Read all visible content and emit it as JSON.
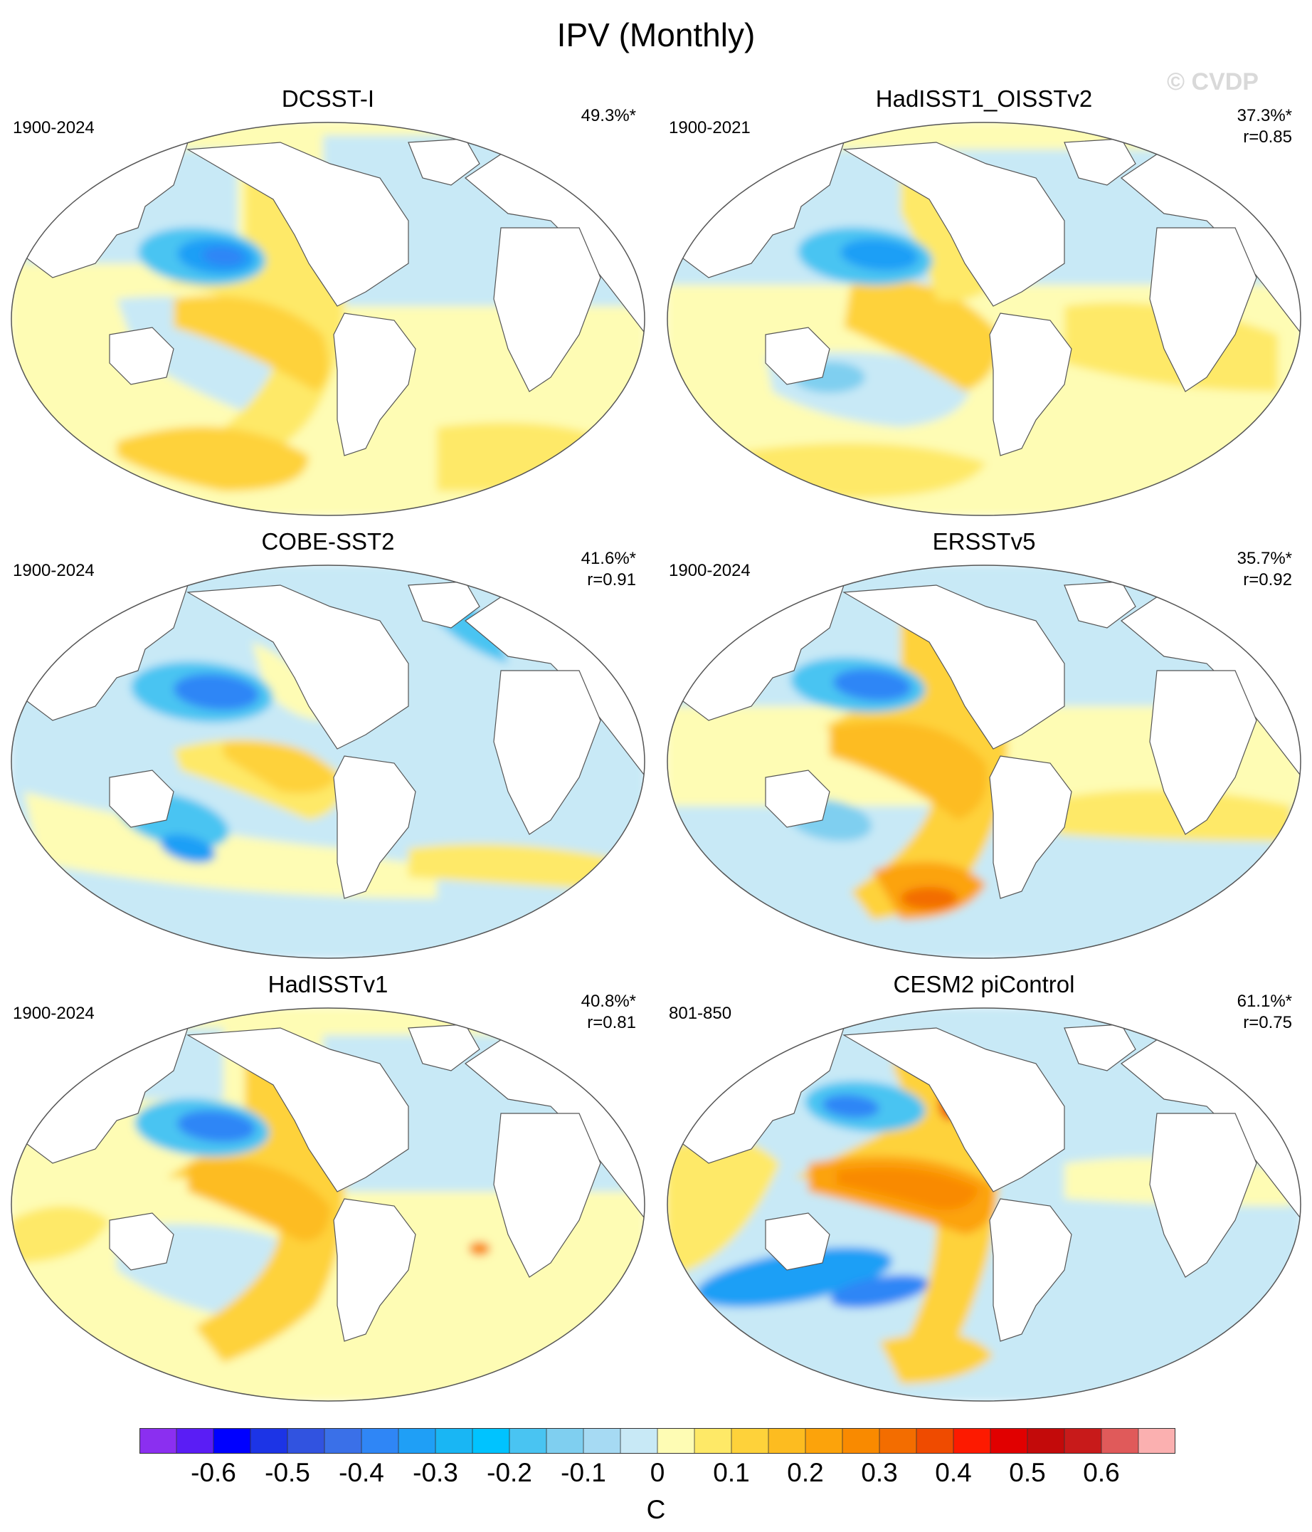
{
  "figure": {
    "title": "IPV (Monthly)",
    "watermark": "© CVDP"
  },
  "panels": [
    {
      "title": "DCSST-I",
      "years": "1900-2024",
      "pct": "49.3%*",
      "r": "",
      "style": "dcsst"
    },
    {
      "title": "HadISST1_OISSTv2",
      "years": "1900-2021",
      "pct": "37.3%*",
      "r": "r=0.85",
      "style": "hadoi"
    },
    {
      "title": "COBE-SST2",
      "years": "1900-2024",
      "pct": "41.6%*",
      "r": "r=0.91",
      "style": "cobe"
    },
    {
      "title": "ERSSTv5",
      "years": "1900-2024",
      "pct": "35.7%*",
      "r": "r=0.92",
      "style": "ersst"
    },
    {
      "title": "HadISSTv1",
      "years": "1900-2024",
      "pct": "40.8%*",
      "r": "r=0.81",
      "style": "hadisst"
    },
    {
      "title": "CESM2 piControl",
      "years": "801-850",
      "pct": "61.1%*",
      "r": "r=0.75",
      "style": "cesm"
    }
  ],
  "colorbar": {
    "unit": "C",
    "tick_labels": [
      "-0.6",
      "-0.5",
      "-0.4",
      "-0.3",
      "-0.2",
      "-0.1",
      "0",
      "0.1",
      "0.2",
      "0.3",
      "0.4",
      "0.5",
      "0.6"
    ],
    "colors": [
      "#8b2ff0",
      "#5a1df5",
      "#0000ff",
      "#1c34e6",
      "#3153e0",
      "#3a70e8",
      "#2f86f6",
      "#1f9ff6",
      "#19b6f4",
      "#00c3ff",
      "#49c4f2",
      "#7fcff0",
      "#a6daf3",
      "#c8e9f6",
      "#fefcb4",
      "#fee967",
      "#fed23a",
      "#fdbc20",
      "#fca30b",
      "#f98a00",
      "#f36d00",
      "#ef4b00",
      "#fd1a00",
      "#e10000",
      "#c30a0a",
      "#c81a1a",
      "#e05a5a",
      "#fbb0b0"
    ]
  }
}
